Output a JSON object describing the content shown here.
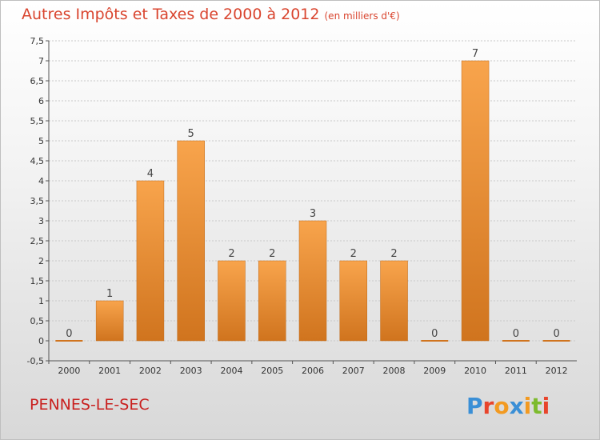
{
  "header": {
    "title": "Autres Impôts et Taxes de 2000 à 2012",
    "subtitle": "(en milliers d'€)"
  },
  "footer": {
    "commune": "PENNES-LE-SEC",
    "logo_text": "Proxiti"
  },
  "colors": {
    "bar_light": "#f8a44c",
    "bar_dark": "#d0741e",
    "title": "#d9452f",
    "commune": "#c9201f"
  },
  "chart_data": {
    "type": "bar",
    "categories": [
      "2000",
      "2001",
      "2002",
      "2003",
      "2004",
      "2005",
      "2006",
      "2007",
      "2008",
      "2009",
      "2010",
      "2011",
      "2012"
    ],
    "values": [
      0,
      1,
      4,
      5,
      2,
      2,
      3,
      2,
      2,
      0,
      7,
      0,
      0
    ],
    "data_labels": [
      "0",
      "1",
      "4",
      "5",
      "2",
      "2",
      "3",
      "2",
      "2",
      "0",
      "7",
      "0",
      "0"
    ],
    "y_ticks": [
      "-0,5",
      "0",
      "0,5",
      "1",
      "1,5",
      "2",
      "2,5",
      "3",
      "3,5",
      "4",
      "4,5",
      "5",
      "5,5",
      "6",
      "6,5",
      "7",
      "7,5"
    ],
    "ylim": [
      -0.5,
      7.5
    ],
    "grid": true,
    "legend": "none"
  }
}
